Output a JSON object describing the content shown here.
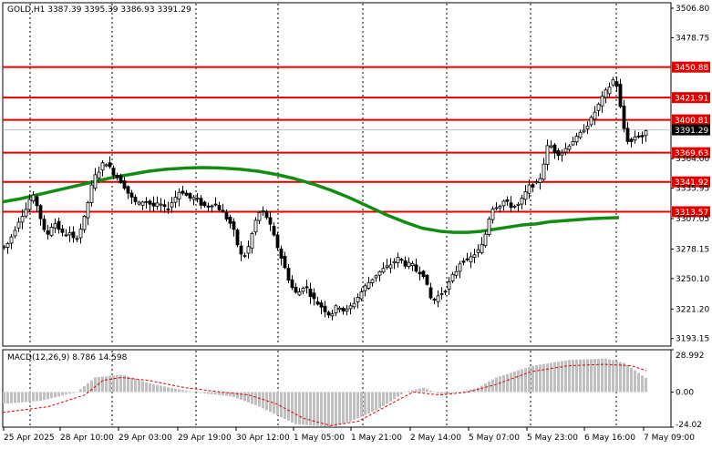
{
  "chart_data": [
    {
      "type": "candlestick",
      "title": "GOLD,H1  3387.39 3395.39 3386.93 3391.29",
      "symbol": "GOLD",
      "timeframe": "H1",
      "ohlc_readout": {
        "open": 3387.39,
        "high": 3395.39,
        "low": 3386.93,
        "close": 3391.29
      },
      "ylim": [
        3186,
        3512
      ],
      "y_ticks": [
        "3506.80",
        "3478.75",
        "3450.88",
        "3421.91",
        "3400.81",
        "3391.29",
        "3364.00",
        "3335.95",
        "3307.05",
        "3278.15",
        "3250.10",
        "3221.20",
        "3193.15"
      ],
      "price_levels": [
        {
          "value": 3450.88,
          "label": "3450.88"
        },
        {
          "value": 3421.91,
          "label": "3421.91"
        },
        {
          "value": 3400.81,
          "label": "3400.81"
        },
        {
          "value": 3369.63,
          "label": "3369.63"
        },
        {
          "value": 3341.92,
          "label": "3341.92"
        },
        {
          "value": 3313.57,
          "label": "3313.57"
        }
      ],
      "current_price": {
        "value": 3391.29,
        "label": "3391.29"
      },
      "moving_average_points": [
        [
          0,
          3323
        ],
        [
          20,
          3326
        ],
        [
          40,
          3330
        ],
        [
          60,
          3334
        ],
        [
          80,
          3338
        ],
        [
          100,
          3342
        ],
        [
          120,
          3346
        ],
        [
          140,
          3349
        ],
        [
          160,
          3352
        ],
        [
          180,
          3354
        ],
        [
          200,
          3355
        ],
        [
          220,
          3355.5
        ],
        [
          240,
          3355
        ],
        [
          260,
          3354
        ],
        [
          280,
          3352
        ],
        [
          300,
          3349
        ],
        [
          320,
          3345
        ],
        [
          340,
          3340
        ],
        [
          360,
          3334
        ],
        [
          380,
          3327
        ],
        [
          400,
          3319
        ],
        [
          420,
          3311
        ],
        [
          440,
          3304
        ],
        [
          460,
          3298
        ],
        [
          480,
          3295
        ],
        [
          495,
          3294
        ],
        [
          510,
          3294
        ],
        [
          525,
          3295
        ],
        [
          540,
          3297
        ],
        [
          555,
          3299
        ],
        [
          570,
          3301
        ],
        [
          585,
          3302
        ],
        [
          600,
          3304
        ],
        [
          615,
          3305
        ],
        [
          630,
          3306
        ],
        [
          645,
          3307
        ],
        [
          660,
          3307.5
        ],
        [
          676,
          3308
        ]
      ],
      "price_path": [
        [
          0,
          3280
        ],
        [
          6,
          3285
        ],
        [
          10,
          3295
        ],
        [
          14,
          3300
        ],
        [
          18,
          3310
        ],
        [
          22,
          3312
        ],
        [
          26,
          3320
        ],
        [
          30,
          3330
        ],
        [
          34,
          3325
        ],
        [
          38,
          3315
        ],
        [
          42,
          3300
        ],
        [
          46,
          3290
        ],
        [
          50,
          3295
        ],
        [
          54,
          3305
        ],
        [
          58,
          3300
        ],
        [
          62,
          3295
        ],
        [
          66,
          3290
        ],
        [
          70,
          3295
        ],
        [
          74,
          3290
        ],
        [
          78,
          3285
        ],
        [
          82,
          3295
        ],
        [
          86,
          3300
        ],
        [
          90,
          3315
        ],
        [
          94,
          3330
        ],
        [
          98,
          3345
        ],
        [
          102,
          3350
        ],
        [
          106,
          3355
        ],
        [
          110,
          3362
        ],
        [
          114,
          3358
        ],
        [
          118,
          3352
        ],
        [
          122,
          3348
        ],
        [
          126,
          3345
        ],
        [
          130,
          3340
        ],
        [
          134,
          3335
        ],
        [
          138,
          3328
        ],
        [
          142,
          3325
        ],
        [
          146,
          3320
        ],
        [
          150,
          3322
        ],
        [
          154,
          3325
        ],
        [
          158,
          3322
        ],
        [
          162,
          3320
        ],
        [
          166,
          3318
        ],
        [
          170,
          3322
        ],
        [
          174,
          3318
        ],
        [
          178,
          3315
        ],
        [
          182,
          3320
        ],
        [
          186,
          3325
        ],
        [
          190,
          3330
        ],
        [
          194,
          3335
        ],
        [
          198,
          3330
        ],
        [
          202,
          3328
        ],
        [
          206,
          3325
        ],
        [
          210,
          3328
        ],
        [
          214,
          3322
        ],
        [
          218,
          3320
        ],
        [
          222,
          3318
        ],
        [
          226,
          3320
        ],
        [
          230,
          3322
        ],
        [
          234,
          3318
        ],
        [
          238,
          3315
        ],
        [
          242,
          3310
        ],
        [
          246,
          3305
        ],
        [
          250,
          3300
        ],
        [
          254,
          3290
        ],
        [
          258,
          3275
        ],
        [
          262,
          3270
        ],
        [
          266,
          3275
        ],
        [
          270,
          3285
        ],
        [
          274,
          3300
        ],
        [
          278,
          3310
        ],
        [
          282,
          3315
        ],
        [
          286,
          3312
        ],
        [
          290,
          3305
        ],
        [
          294,
          3295
        ],
        [
          298,
          3285
        ],
        [
          302,
          3275
        ],
        [
          306,
          3265
        ],
        [
          310,
          3255
        ],
        [
          314,
          3245
        ],
        [
          318,
          3238
        ],
        [
          322,
          3235
        ],
        [
          326,
          3240
        ],
        [
          330,
          3245
        ],
        [
          334,
          3238
        ],
        [
          338,
          3232
        ],
        [
          342,
          3228
        ],
        [
          346,
          3225
        ],
        [
          350,
          3222
        ],
        [
          354,
          3218
        ],
        [
          358,
          3215
        ],
        [
          362,
          3220
        ],
        [
          366,
          3225
        ],
        [
          370,
          3222
        ],
        [
          374,
          3218
        ],
        [
          378,
          3222
        ],
        [
          382,
          3225
        ],
        [
          386,
          3230
        ],
        [
          390,
          3235
        ],
        [
          394,
          3240
        ],
        [
          398,
          3245
        ],
        [
          402,
          3248
        ],
        [
          406,
          3252
        ],
        [
          410,
          3255
        ],
        [
          414,
          3258
        ],
        [
          418,
          3260
        ],
        [
          422,
          3262
        ],
        [
          426,
          3265
        ],
        [
          430,
          3268
        ],
        [
          434,
          3270
        ],
        [
          438,
          3265
        ],
        [
          442,
          3262
        ],
        [
          446,
          3265
        ],
        [
          450,
          3260
        ],
        [
          454,
          3255
        ],
        [
          458,
          3258
        ],
        [
          462,
          3250
        ],
        [
          466,
          3235
        ],
        [
          470,
          3228
        ],
        [
          474,
          3232
        ],
        [
          478,
          3235
        ],
        [
          482,
          3238
        ],
        [
          486,
          3242
        ],
        [
          490,
          3250
        ],
        [
          494,
          3255
        ],
        [
          498,
          3260
        ],
        [
          502,
          3270
        ],
        [
          506,
          3265
        ],
        [
          510,
          3268
        ],
        [
          514,
          3272
        ],
        [
          518,
          3275
        ],
        [
          522,
          3278
        ],
        [
          526,
          3285
        ],
        [
          530,
          3300
        ],
        [
          534,
          3315
        ],
        [
          538,
          3320
        ],
        [
          542,
          3318
        ],
        [
          546,
          3322
        ],
        [
          550,
          3325
        ],
        [
          554,
          3318
        ],
        [
          558,
          3320
        ],
        [
          562,
          3318
        ],
        [
          566,
          3322
        ],
        [
          570,
          3328
        ],
        [
          574,
          3335
        ],
        [
          578,
          3340
        ],
        [
          582,
          3338
        ],
        [
          586,
          3342
        ],
        [
          590,
          3350
        ],
        [
          594,
          3370
        ],
        [
          598,
          3380
        ],
        [
          602,
          3372
        ],
        [
          606,
          3370
        ],
        [
          610,
          3368
        ],
        [
          614,
          3372
        ],
        [
          618,
          3375
        ],
        [
          622,
          3380
        ],
        [
          626,
          3382
        ],
        [
          630,
          3385
        ],
        [
          634,
          3390
        ],
        [
          638,
          3395
        ],
        [
          642,
          3398
        ],
        [
          646,
          3405
        ],
        [
          650,
          3412
        ],
        [
          654,
          3418
        ],
        [
          658,
          3425
        ],
        [
          662,
          3430
        ],
        [
          666,
          3435
        ],
        [
          670,
          3442
        ],
        [
          674,
          3425
        ],
        [
          678,
          3400
        ],
        [
          682,
          3385
        ],
        [
          686,
          3378
        ],
        [
          690,
          3382
        ],
        [
          694,
          3388
        ],
        [
          698,
          3384
        ],
        [
          702,
          3386
        ],
        [
          706,
          3391.29
        ]
      ]
    },
    {
      "type": "bar+line",
      "title": "MACD(12,26,9) 8.786 14.598",
      "indicator": "MACD(12,26,9)",
      "values_readout": {
        "main": 8.786,
        "signal": 14.598
      },
      "ylim": [
        -24.02,
        28.992
      ],
      "y_ticks": [
        "28.992",
        "0.00",
        "-24.02"
      ],
      "histogram_points": [
        [
          0,
          -8
        ],
        [
          40,
          -6
        ],
        [
          80,
          0
        ],
        [
          100,
          10
        ],
        [
          130,
          12
        ],
        [
          160,
          6
        ],
        [
          190,
          2
        ],
        [
          220,
          -1
        ],
        [
          250,
          -3
        ],
        [
          280,
          -10
        ],
        [
          320,
          -22
        ],
        [
          360,
          -24
        ],
        [
          380,
          -20
        ],
        [
          410,
          -12
        ],
        [
          440,
          0
        ],
        [
          460,
          3
        ],
        [
          480,
          -2
        ],
        [
          500,
          0
        ],
        [
          520,
          3
        ],
        [
          540,
          10
        ],
        [
          580,
          18
        ],
        [
          620,
          22
        ],
        [
          660,
          23
        ],
        [
          680,
          20
        ],
        [
          706,
          8.786
        ]
      ],
      "signal_points": [
        [
          0,
          -14
        ],
        [
          50,
          -10
        ],
        [
          90,
          -2
        ],
        [
          110,
          8
        ],
        [
          130,
          10
        ],
        [
          160,
          8
        ],
        [
          200,
          3
        ],
        [
          240,
          0
        ],
        [
          270,
          -2
        ],
        [
          300,
          -8
        ],
        [
          330,
          -18
        ],
        [
          360,
          -23
        ],
        [
          390,
          -20
        ],
        [
          420,
          -10
        ],
        [
          450,
          0
        ],
        [
          480,
          -2
        ],
        [
          510,
          0
        ],
        [
          540,
          5
        ],
        [
          580,
          14
        ],
        [
          620,
          18
        ],
        [
          660,
          19
        ],
        [
          690,
          18
        ],
        [
          706,
          14.598
        ]
      ]
    }
  ],
  "x_ticks": [
    "25 Apr 2025",
    "28 Apr 10:00",
    "29 Apr 03:00",
    "29 Apr 19:00",
    "30 Apr 12:00",
    "1 May 05:00",
    "1 May 21:00",
    "2 May 14:00",
    "5 May 07:00",
    "5 May 23:00",
    "6 May 16:00",
    "7 May 09:00"
  ]
}
